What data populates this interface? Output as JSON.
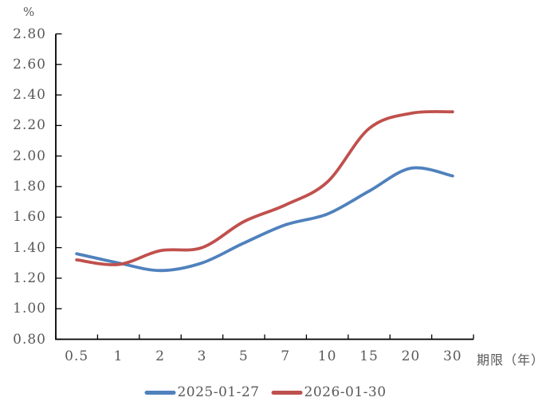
{
  "chart_data": {
    "type": "line",
    "title": "",
    "ylabel": "%",
    "xlabel": "期限（年）",
    "categories": [
      "0.5",
      "1",
      "2",
      "3",
      "5",
      "7",
      "10",
      "15",
      "20",
      "30"
    ],
    "series": [
      {
        "name": "2025-01-27",
        "color": "#4F81BD",
        "values": [
          1.36,
          1.3,
          1.25,
          1.3,
          1.43,
          1.55,
          1.62,
          1.77,
          1.92,
          1.87
        ]
      },
      {
        "name": "2026-01-30",
        "color": "#C0504D",
        "values": [
          1.32,
          1.29,
          1.38,
          1.4,
          1.57,
          1.68,
          1.83,
          2.18,
          2.28,
          2.29
        ]
      }
    ],
    "y_ticks": [
      "2.80",
      "2.60",
      "2.40",
      "2.20",
      "2.00",
      "1.80",
      "1.60",
      "1.40",
      "1.20",
      "1.00",
      "0.80"
    ],
    "ylim": [
      0.8,
      2.8
    ],
    "y_step": 0.2,
    "grid": false,
    "smooth": true,
    "legend_position": "bottom"
  },
  "colors": {
    "axis": "#000000",
    "text": "#595959",
    "background": "#ffffff"
  }
}
